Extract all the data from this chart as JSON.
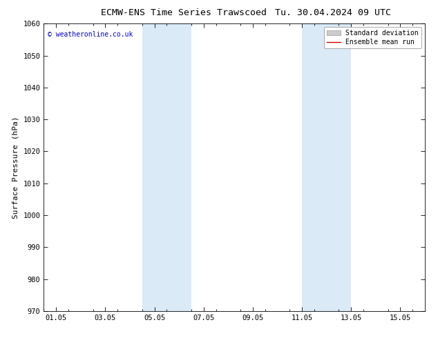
{
  "title_left": "ECMW-ENS Time Series Trawscoed",
  "title_right": "Tu. 30.04.2024 09 UTC",
  "ylabel": "Surface Pressure (hPa)",
  "ylim": [
    970,
    1060
  ],
  "yticks": [
    970,
    980,
    990,
    1000,
    1010,
    1020,
    1030,
    1040,
    1050,
    1060
  ],
  "xlim_num": [
    0,
    15.5
  ],
  "xtick_labels": [
    "01.05",
    "03.05",
    "05.05",
    "07.05",
    "09.05",
    "11.05",
    "13.05",
    "15.05"
  ],
  "xtick_positions": [
    0.5,
    2.5,
    4.5,
    6.5,
    8.5,
    10.5,
    12.5,
    14.5
  ],
  "shaded_bands": [
    {
      "xmin": 4.0,
      "xmax": 6.0,
      "color": "#daeaf7"
    },
    {
      "xmin": 10.5,
      "xmax": 12.5,
      "color": "#daeaf7"
    }
  ],
  "watermark": "© weatheronline.co.uk",
  "watermark_color": "#0000cc",
  "legend_sd_label": "Standard deviation",
  "legend_mean_label": "Ensemble mean run",
  "legend_sd_color": "#cccccc",
  "legend_mean_color": "#cc0000",
  "background_color": "#ffffff",
  "plot_bg_color": "#ffffff",
  "title_fontsize": 9.5,
  "ylabel_fontsize": 8,
  "tick_fontsize": 7.5,
  "watermark_fontsize": 7,
  "legend_fontsize": 7
}
